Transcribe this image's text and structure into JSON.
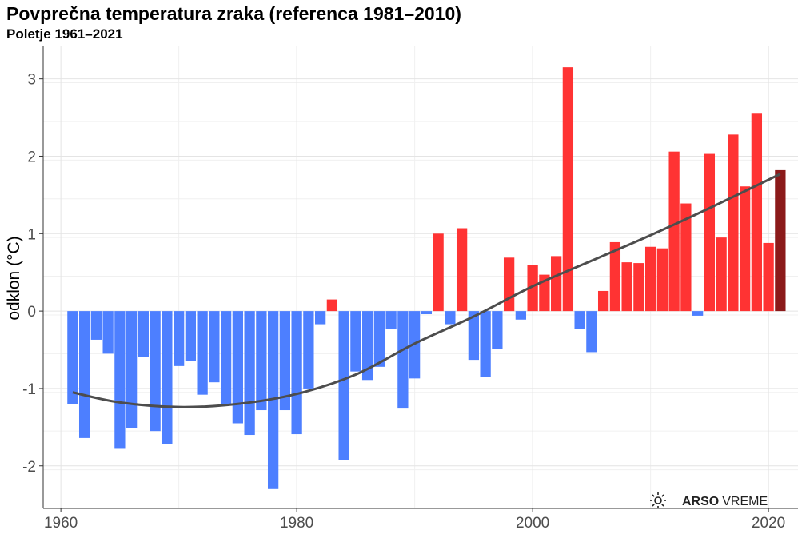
{
  "chart_data": {
    "type": "bar",
    "title": "Povprečna temperatura zraka (referenca 1981–2010)",
    "subtitle": "Poletje 1961–2021",
    "ylabel": "odklon (°C)",
    "xlabel": "",
    "xlim": [
      1958.5,
      2022.5
    ],
    "ylim": [
      -2.55,
      3.42
    ],
    "x_ticks": [
      1960,
      1980,
      2000,
      2020
    ],
    "y_ticks": [
      -2,
      -1,
      0,
      1,
      2,
      3
    ],
    "y_tick_labels": [
      "-2",
      "-1",
      "0",
      "1",
      "2",
      "3"
    ],
    "grid": true,
    "colors": {
      "positive": "#ff3333",
      "negative": "#4d7fff",
      "latest": "#8b1a1a",
      "trend": "#4d4d4d"
    },
    "series": [
      {
        "x": [
          1961,
          1962,
          1963,
          1964,
          1965,
          1966,
          1967,
          1968,
          1969,
          1970,
          1971,
          1972,
          1973,
          1974,
          1975,
          1976,
          1977,
          1978,
          1979,
          1980,
          1981,
          1982,
          1983,
          1984,
          1985,
          1986,
          1987,
          1988,
          1989,
          1990,
          1991,
          1992,
          1993,
          1994,
          1995,
          1996,
          1997,
          1998,
          1999,
          2000,
          2001,
          2002,
          2003,
          2004,
          2005,
          2006,
          2007,
          2008,
          2009,
          2010,
          2011,
          2012,
          2013,
          2014,
          2015,
          2016,
          2017,
          2018,
          2019,
          2020,
          2021
        ],
        "values": [
          -1.2,
          -1.64,
          -0.37,
          -0.55,
          -1.78,
          -1.51,
          -0.59,
          -1.55,
          -1.72,
          -0.71,
          -0.64,
          -1.08,
          -0.92,
          -1.22,
          -1.45,
          -1.6,
          -1.28,
          -2.3,
          -1.28,
          -1.59,
          -1.0,
          -0.17,
          0.15,
          -1.92,
          -0.78,
          -0.89,
          -0.72,
          -0.23,
          -1.26,
          -0.87,
          -0.04,
          1.0,
          -0.17,
          1.07,
          -0.63,
          -0.85,
          -0.49,
          0.69,
          -0.11,
          0.6,
          0.47,
          0.71,
          3.15,
          -0.23,
          -0.53,
          0.26,
          0.89,
          0.63,
          0.62,
          0.83,
          0.81,
          2.06,
          1.39,
          -0.06,
          2.03,
          0.95,
          2.28,
          1.61,
          2.56,
          0.88,
          1.82
        ]
      },
      {
        "type": "line",
        "x": [
          1961,
          1965,
          1970,
          1975,
          1980,
          1985,
          1990,
          1995,
          2000,
          2005,
          2010,
          2015,
          2021
        ],
        "values": [
          -1.05,
          -1.18,
          -1.24,
          -1.2,
          -1.07,
          -0.82,
          -0.42,
          -0.07,
          0.32,
          0.65,
          0.98,
          1.33,
          1.77
        ]
      }
    ]
  },
  "branding": {
    "logo_bold": "ARSO",
    "logo_light": "VREME",
    "logo_icon": "sun-icon"
  }
}
